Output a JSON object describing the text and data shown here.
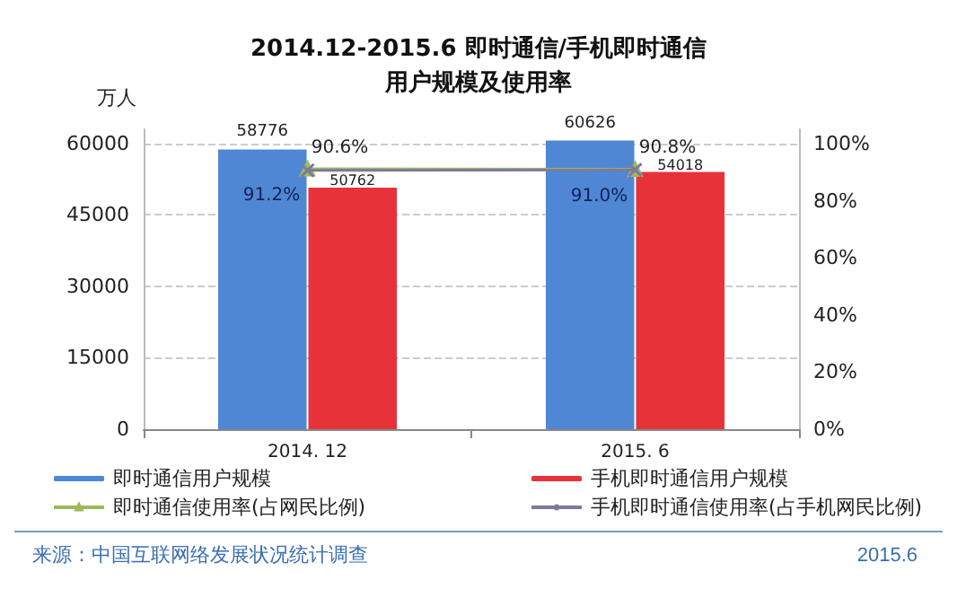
{
  "chart_data": {
    "type": "bar",
    "title": "2014.12-2015.6 即时通信/手机即时通信",
    "subtitle": "用户规模及使用率",
    "ylabel": "万人",
    "categories": [
      "2014. 12",
      "2015. 6"
    ],
    "series": [
      {
        "name": "即时通信用户规模",
        "color": "#4f87d4",
        "values": [
          58776,
          60626
        ],
        "value_labels": [
          "58776",
          "60626"
        ]
      },
      {
        "name": "手机即时通信用户规模",
        "color": "#e8323a",
        "values": [
          50762,
          54018
        ],
        "value_labels": [
          "50762",
          "54018"
        ]
      },
      {
        "name": "即时通信使用率(占网民比例)",
        "type": "line",
        "axis": "y2",
        "marker": "triangle",
        "color": "#9bbb59",
        "values": [
          91.2,
          91.0
        ],
        "value_labels": [
          "91.2%",
          "91.0%"
        ]
      },
      {
        "name": "手机即时通信使用率(占手机网民比例)",
        "type": "line",
        "axis": "y2",
        "marker": "cross",
        "color": "#7c7a9e",
        "values": [
          90.6,
          90.8
        ],
        "value_labels": [
          "90.6%",
          "90.8%"
        ]
      }
    ],
    "ylim": [
      0,
      63000
    ],
    "yticks": [
      0,
      15000,
      30000,
      45000,
      60000
    ],
    "y2lim": [
      0,
      105
    ],
    "y2ticks": [
      {
        "value": 0,
        "label": "0%"
      },
      {
        "value": 20,
        "label": "20%"
      },
      {
        "value": 40,
        "label": "40%"
      },
      {
        "value": 60,
        "label": "60%"
      },
      {
        "value": 80,
        "label": "80%"
      },
      {
        "value": 100,
        "label": "100%"
      }
    ],
    "grid": "y",
    "legend": "bottom",
    "line_style": "solid",
    "annotations": [
      "来源：中国互联网络发展状况统计调查",
      "2015.6"
    ]
  }
}
